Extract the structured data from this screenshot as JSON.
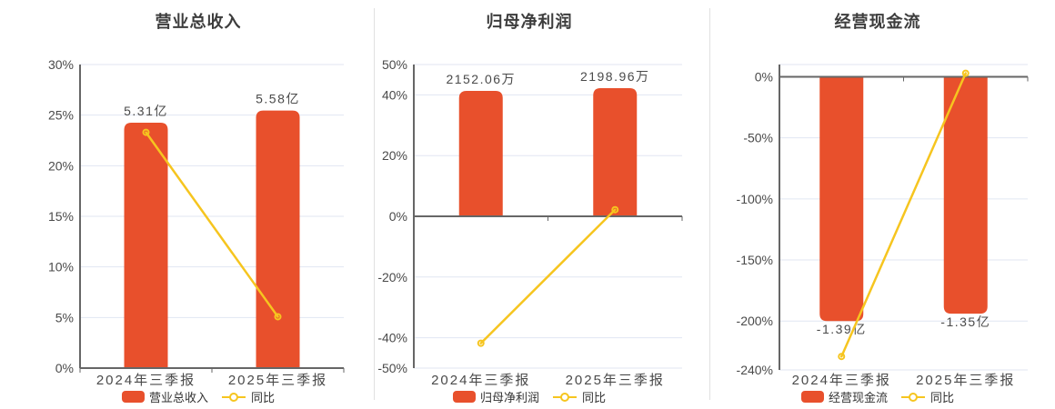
{
  "colors": {
    "bar": "#E8502C",
    "line": "#F6C51F",
    "grid": "#E1E6F2",
    "axis": "#666666",
    "axis_label": "#4A4A4A",
    "value_label": "#4A4A4A",
    "title": "#3D3D3D",
    "legend_text": "#333333",
    "divider": "#E0E0E0",
    "marker_fill": "#FFFFFF"
  },
  "chart_data": [
    {
      "type": "bar+line",
      "title": "营业总收入",
      "categories": [
        "2024年三季报",
        "2025年三季报"
      ],
      "bar_series": {
        "name": "营业总收入",
        "values": [
          5.31,
          5.58
        ],
        "unit": "亿",
        "values_display": [
          "5.31亿",
          "5.58亿"
        ],
        "drawn_axis_pct": [
          24.25,
          25.45
        ],
        "label_position": "top"
      },
      "line_series": {
        "name": "同比",
        "values_pct": [
          23.3,
          5.08
        ]
      },
      "y_axis": {
        "min": 0,
        "max": 30,
        "zero": 0,
        "grid": true,
        "ticks": [
          {
            "value": 30,
            "label": "30%"
          },
          {
            "value": 25,
            "label": "25%"
          },
          {
            "value": 20,
            "label": "20%"
          },
          {
            "value": 15,
            "label": "15%"
          },
          {
            "value": 10,
            "label": "10%"
          },
          {
            "value": 5,
            "label": "5%"
          },
          {
            "value": 0,
            "label": "0%"
          }
        ]
      }
    },
    {
      "type": "bar+line",
      "title": "归母净利润",
      "categories": [
        "2024年三季报",
        "2025年三季报"
      ],
      "bar_series": {
        "name": "归母净利润",
        "values": [
          2152.06,
          2198.96
        ],
        "unit": "万",
        "values_display": [
          "2152.06万",
          "2198.96万"
        ],
        "drawn_axis_pct": [
          41.3,
          42.2
        ],
        "label_position": "top"
      },
      "line_series": {
        "name": "同比",
        "values_pct": [
          -41.8,
          2.18
        ]
      },
      "y_axis": {
        "min": -50,
        "max": 50,
        "zero": 0,
        "grid": true,
        "ticks": [
          {
            "value": 50,
            "label": "50%"
          },
          {
            "value": 40,
            "label": "40%"
          },
          {
            "value": 20,
            "label": "20%"
          },
          {
            "value": 0,
            "label": "0%"
          },
          {
            "value": -20,
            "label": "-20%"
          },
          {
            "value": -40,
            "label": "-40%"
          },
          {
            "value": -50,
            "label": "-50%"
          }
        ]
      }
    },
    {
      "type": "bar+line",
      "title": "经营现金流",
      "categories": [
        "2024年三季报",
        "2025年三季报"
      ],
      "bar_series": {
        "name": "经营现金流",
        "values": [
          -1.39,
          -1.35
        ],
        "unit": "亿",
        "values_display": [
          "-1.39亿",
          "-1.35亿"
        ],
        "drawn_axis_pct": [
          -200,
          -194
        ],
        "label_position": "bottom"
      },
      "line_series": {
        "name": "同比",
        "values_pct": [
          -229,
          2.88
        ]
      },
      "y_axis": {
        "min": -240,
        "max": 10,
        "zero": 0,
        "grid": true,
        "ticks": [
          {
            "value": 10,
            "label": ""
          },
          {
            "value": 0,
            "label": "0%"
          },
          {
            "value": -50,
            "label": "-50%"
          },
          {
            "value": -100,
            "label": "-100%"
          },
          {
            "value": -150,
            "label": "-150%"
          },
          {
            "value": -200,
            "label": "-200%"
          },
          {
            "value": -240,
            "label": "-240%"
          }
        ]
      }
    }
  ]
}
